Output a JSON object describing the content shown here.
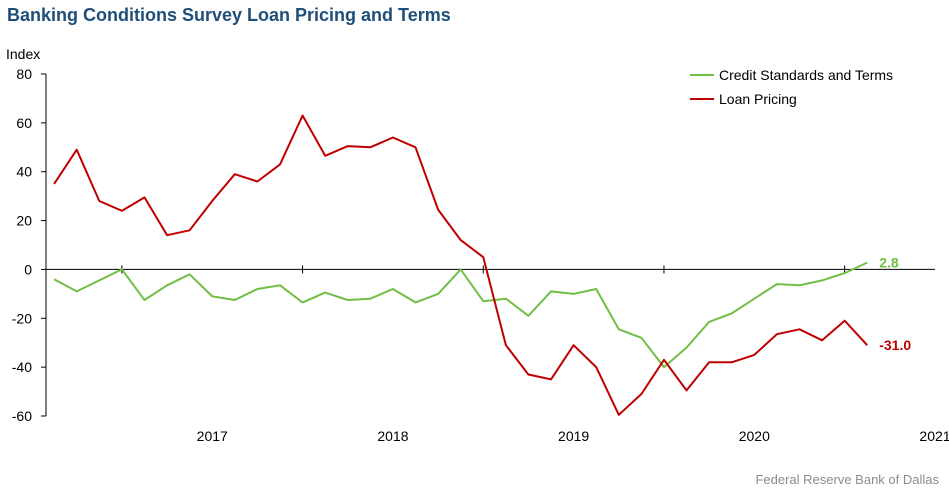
{
  "title": "Banking Conditions Survey Loan Pricing and Terms",
  "source": "Federal Reserve Bank of Dallas",
  "colors": {
    "title": "#1f4e79",
    "credit": "#70bf44",
    "loan": "#c00000",
    "axis": "#000000"
  },
  "chart_data": {
    "type": "line",
    "ylabel": "Index",
    "ylim": [
      -60,
      80
    ],
    "yticks": [
      80,
      60,
      40,
      20,
      0,
      -20,
      -40,
      -60
    ],
    "xlim": [
      2016.58,
      2021.5
    ],
    "xtick_labels": [
      "2017",
      "2018",
      "2019",
      "2020",
      "2021"
    ],
    "legend_position": "top-right",
    "grid": false,
    "series": [
      {
        "name": "Credit Standards and Terms",
        "end_label": "2.8",
        "x": [
          2016.625,
          2016.75,
          2016.875,
          2017.0,
          2017.125,
          2017.25,
          2017.375,
          2017.5,
          2017.625,
          2017.75,
          2017.875,
          2018.0,
          2018.125,
          2018.25,
          2018.375,
          2018.5,
          2018.625,
          2018.75,
          2018.875,
          2019.0,
          2019.125,
          2019.25,
          2019.375,
          2019.5,
          2019.625,
          2019.75,
          2019.875,
          2020.0,
          2020.125,
          2020.25,
          2020.375,
          2020.5,
          2020.625,
          2020.75,
          2020.875,
          2021.0,
          2021.125
        ],
        "values": [
          -4,
          -9,
          -4.5,
          0,
          -12.5,
          -6.5,
          -2,
          -11,
          -12.5,
          -8,
          -6.5,
          -13.5,
          -9.5,
          -12.5,
          -12,
          -8,
          -13.5,
          -10,
          0,
          -13,
          -12,
          -19,
          -9,
          -10,
          -8,
          -24.5,
          -28,
          -40,
          -32,
          -21.5,
          -18,
          -12,
          -6,
          -6.5,
          -4.5,
          -1.5,
          2.8
        ]
      },
      {
        "name": "Loan Pricing",
        "end_label": "-31.0",
        "x": [
          2016.625,
          2016.75,
          2016.875,
          2017.0,
          2017.125,
          2017.25,
          2017.375,
          2017.5,
          2017.625,
          2017.75,
          2017.875,
          2018.0,
          2018.125,
          2018.25,
          2018.375,
          2018.5,
          2018.625,
          2018.75,
          2018.875,
          2019.0,
          2019.125,
          2019.25,
          2019.375,
          2019.5,
          2019.625,
          2019.75,
          2019.875,
          2020.0,
          2020.125,
          2020.25,
          2020.375,
          2020.5,
          2020.625,
          2020.75,
          2020.875,
          2021.0,
          2021.125
        ],
        "values": [
          35,
          49,
          28,
          24,
          29.5,
          14,
          16,
          28,
          39,
          36,
          43,
          63,
          46.5,
          50.5,
          50,
          54,
          50,
          24.5,
          12,
          5,
          -31,
          -43,
          -45,
          -31,
          -40,
          -59.5,
          -51,
          -37,
          -49.5,
          -38,
          -38,
          -35,
          -26.5,
          -24.5,
          -29,
          -21,
          -31
        ]
      }
    ]
  }
}
